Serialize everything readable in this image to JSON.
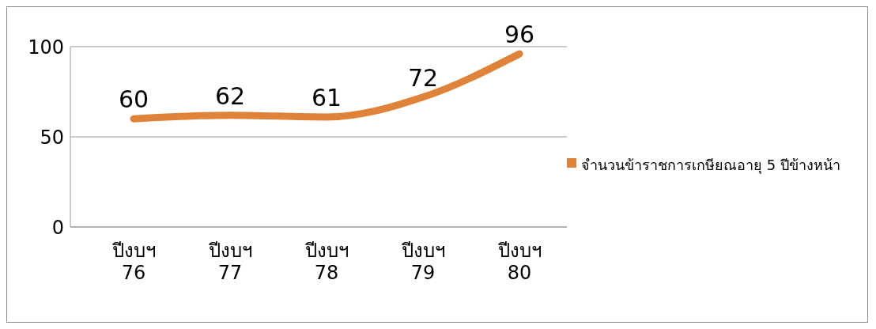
{
  "chart_data": {
    "type": "line",
    "categories": [
      "ปีงบฯ 76",
      "ปีงบฯ 77",
      "ปีงบฯ 78",
      "ปีงบฯ 79",
      "ปีงบฯ 80"
    ],
    "series": [
      {
        "name": "จำนวนข้าราชการเกษียณอายุ 5 ปีข้างหน้า",
        "color": "#e0833a",
        "values": [
          60,
          62,
          61,
          72,
          96
        ]
      }
    ],
    "ylim": [
      0,
      100
    ],
    "yticks": [
      0,
      50,
      100
    ],
    "grid": "y",
    "legend": "right",
    "data_labels": true,
    "marker": "none",
    "line_style": "solid"
  }
}
